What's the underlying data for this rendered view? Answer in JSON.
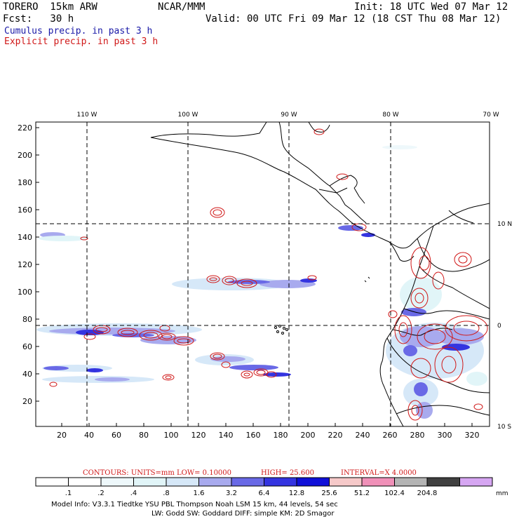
{
  "header": {
    "model_name": "TORERO  15km ARW",
    "org": "NCAR/MMM",
    "init": "Init: 18 UTC Wed 07 Mar 12",
    "fcst": "Fcst:   30 h",
    "valid": "Valid: 00 UTC Fri 09 Mar 12 (18 CST Thu 08 Mar 12)",
    "field1": "Cumulus precip. in past 3 h",
    "field2": "Explicit precip. in past 3 h"
  },
  "map": {
    "lon_labels": [
      "110 W",
      "100 W",
      "90 W",
      "80 W",
      "70 W"
    ],
    "lat_labels": [
      "10 N",
      "0",
      "10 S"
    ],
    "y_ticks": [
      "220",
      "200",
      "180",
      "160",
      "140",
      "120",
      "100",
      "80",
      "60",
      "40",
      "20"
    ],
    "x_ticks": [
      "20",
      "40",
      "60",
      "80",
      "100",
      "120",
      "140",
      "160",
      "180",
      "200",
      "220",
      "240",
      "260",
      "280",
      "300",
      "320"
    ]
  },
  "contour_info": {
    "label": "CONTOURS:  UNITS=mm  LOW= 0.10000",
    "high": "HIGH=  25.600",
    "interval": "INTERVAL=X  4.0000"
  },
  "colorbar": {
    "colors": [
      "#ffffff",
      "#ffffff",
      "#eef8fb",
      "#e1f5f8",
      "#d6e8f8",
      "#a8aaee",
      "#6969e6",
      "#3434e0",
      "#1010d8",
      "#f6c9c9",
      "#f090b8",
      "#b4b4b4",
      "#404040",
      "#d6a6f2"
    ],
    "labels": [
      ".1",
      ".2",
      ".4",
      ".8",
      "1.6",
      "3.2",
      "6.4",
      "12.8",
      "25.6",
      "51.2",
      "102.4",
      "204.8"
    ],
    "units": "mm"
  },
  "footer": {
    "line1": "Model Info: V3.3.1    Tiedtke YSU PBL  Thompson     Noah LSM  15 km,   44 levels,   54 sec",
    "line2": "LW: Godd SW: Goddard DIFF: simple KM: 2D Smagor"
  }
}
